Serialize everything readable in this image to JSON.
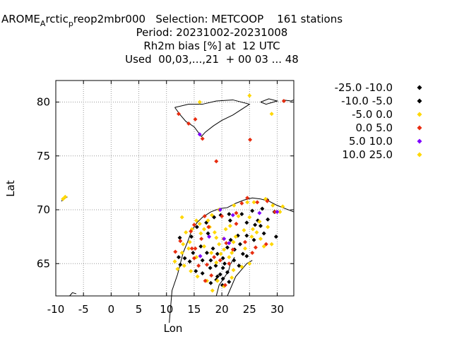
{
  "title": {
    "line1_a": "AROME",
    "line1_sub1": "A",
    "line1_b": "rctic",
    "line1_sub2": "p",
    "line1_c": "reop2mbr000   Selection: METCOOP    161 stations",
    "line2": "Period: 20231002-20231008",
    "line3": "Rh2m bias [%] at  12 UTC",
    "line4": "Used  00,03,...,21  + 00 03 ... 48"
  },
  "chart_data": {
    "type": "scatter",
    "xlabel": "Lon",
    "ylabel": "Lat",
    "xlim": [
      -10,
      33
    ],
    "ylim": [
      62,
      82
    ],
    "xticks": [
      -10,
      -5,
      0,
      5,
      10,
      15,
      20,
      25,
      30
    ],
    "yticks": [
      65,
      70,
      75,
      80
    ],
    "grid": true,
    "legend_position": "right",
    "series": [
      {
        "name": "-25.0 -10.0",
        "color": "#000000",
        "points": [
          [
            14.5,
            67.5
          ],
          [
            15.5,
            68.4
          ],
          [
            17.2,
            68.8
          ],
          [
            18.6,
            69.3
          ],
          [
            19.8,
            69.5
          ],
          [
            21.3,
            69.6
          ],
          [
            23.6,
            69.6
          ],
          [
            25.5,
            69.9
          ],
          [
            27.3,
            70.1
          ],
          [
            28.2,
            70.9
          ],
          [
            24.5,
            68.8
          ],
          [
            26.5,
            69.0
          ],
          [
            28.3,
            69.1
          ],
          [
            29.5,
            69.8
          ],
          [
            27.0,
            68.5
          ],
          [
            29.8,
            67.5
          ],
          [
            27.6,
            67.8
          ],
          [
            25.8,
            67.2
          ],
          [
            24.5,
            67.6
          ],
          [
            23.3,
            66.8
          ],
          [
            22.3,
            66.3
          ],
          [
            21.0,
            66.5
          ],
          [
            20.2,
            65.5
          ],
          [
            19.2,
            65.9
          ],
          [
            18.4,
            66.4
          ],
          [
            20.5,
            65.0
          ],
          [
            18.9,
            64.8
          ],
          [
            17.9,
            64.6
          ],
          [
            16.5,
            64.1
          ],
          [
            15.3,
            64.3
          ],
          [
            14.8,
            66.0
          ],
          [
            13.3,
            65.5
          ],
          [
            12.2,
            65.6
          ],
          [
            12.5,
            64.9
          ],
          [
            19.7,
            64.0
          ],
          [
            20.2,
            63.6
          ],
          [
            21.3,
            63.3
          ],
          [
            21.0,
            64.2
          ],
          [
            20.2,
            64.6
          ],
          [
            22.2,
            65.3
          ],
          [
            23.8,
            65.9
          ],
          [
            24.5,
            65.7
          ],
          [
            18.0,
            63.2
          ],
          [
            19.0,
            63.5
          ],
          [
            12.4,
            67.4
          ],
          [
            17.5,
            67.8
          ],
          [
            21.6,
            67.2
          ],
          [
            17.3,
            66.0
          ]
        ]
      },
      {
        "name": "-10.0 -5.0",
        "color": "#000000",
        "points": [
          [
            20.1,
            63.0
          ],
          [
            19.2,
            63.8
          ],
          [
            23.1,
            64.8
          ],
          [
            18.0,
            65.3
          ],
          [
            16.2,
            66.6
          ],
          [
            16.5,
            65.3
          ],
          [
            22.9,
            67.6
          ],
          [
            26.0,
            68.6
          ],
          [
            14.2,
            65.2
          ],
          [
            21.5,
            69.0
          ]
        ]
      },
      {
        "name": "-5.0 0.0",
        "color": "#ffd700",
        "points": [
          [
            -8.7,
            71.0
          ],
          [
            -8.3,
            71.2
          ],
          [
            16.0,
            80.0
          ],
          [
            25.0,
            80.6
          ],
          [
            29.0,
            78.9
          ],
          [
            11.5,
            65.2
          ],
          [
            12.0,
            64.5
          ],
          [
            13.2,
            64.8
          ],
          [
            12.8,
            66.0
          ],
          [
            13.0,
            66.8
          ],
          [
            14.2,
            67.0
          ],
          [
            14.6,
            68.2
          ],
          [
            16.0,
            68.7
          ],
          [
            16.8,
            68.2
          ],
          [
            17.5,
            69.0
          ],
          [
            18.2,
            69.5
          ],
          [
            19.5,
            70.0
          ],
          [
            22.2,
            70.4
          ],
          [
            24.6,
            70.7
          ],
          [
            25.8,
            70.7
          ],
          [
            27.9,
            71.0
          ],
          [
            29.2,
            70.4
          ],
          [
            30.5,
            69.8
          ],
          [
            31.0,
            70.3
          ],
          [
            25.0,
            69.3
          ],
          [
            26.8,
            68.9
          ],
          [
            28.3,
            68.4
          ],
          [
            29.0,
            66.8
          ],
          [
            27.6,
            66.6
          ],
          [
            26.3,
            67.9
          ],
          [
            24.0,
            68.1
          ],
          [
            22.5,
            67.5
          ],
          [
            21.5,
            68.5
          ],
          [
            20.7,
            68.2
          ],
          [
            20.3,
            67.3
          ],
          [
            19.5,
            66.8
          ],
          [
            18.7,
            67.9
          ],
          [
            19.0,
            65.1
          ],
          [
            21.3,
            65.6
          ],
          [
            23.6,
            64.7
          ],
          [
            22.1,
            64.4
          ],
          [
            19.8,
            65.9
          ],
          [
            18.1,
            66.0
          ],
          [
            16.8,
            66.6
          ],
          [
            15.4,
            65.6
          ],
          [
            14.4,
            64.3
          ],
          [
            15.6,
            63.8
          ],
          [
            17.3,
            63.4
          ],
          [
            18.3,
            62.5
          ],
          [
            20.4,
            62.9
          ],
          [
            21.8,
            63.7
          ],
          [
            25.0,
            65.0
          ],
          [
            24.2,
            66.4
          ],
          [
            14.0,
            66.4
          ],
          [
            13.5,
            67.9
          ],
          [
            15.4,
            69.0
          ],
          [
            17.8,
            68.4
          ],
          [
            23.0,
            69.4
          ],
          [
            27.0,
            67.3
          ],
          [
            19.2,
            63.4
          ],
          [
            16.2,
            67.8
          ],
          [
            21.8,
            66.0
          ],
          [
            25.6,
            68.2
          ]
        ]
      },
      {
        "name": "0.0 5.0",
        "color": "#e82d10",
        "points": [
          [
            12.2,
            78.9
          ],
          [
            14.0,
            78.0
          ],
          [
            15.2,
            78.4
          ],
          [
            16.5,
            76.6
          ],
          [
            19.0,
            74.5
          ],
          [
            25.1,
            76.5
          ],
          [
            31.2,
            80.1
          ],
          [
            15.0,
            65.5
          ],
          [
            15.2,
            66.4
          ],
          [
            14.4,
            68.0
          ],
          [
            16.3,
            67.3
          ],
          [
            16.9,
            69.4
          ],
          [
            20.0,
            69.4
          ],
          [
            22.6,
            69.7
          ],
          [
            23.6,
            70.6
          ],
          [
            24.6,
            71.1
          ],
          [
            26.4,
            70.7
          ],
          [
            28.2,
            70.8
          ],
          [
            29.6,
            69.8
          ],
          [
            22.6,
            68.7
          ],
          [
            24.2,
            67.0
          ],
          [
            25.5,
            66.0
          ],
          [
            26.1,
            66.5
          ],
          [
            28.0,
            66.8
          ],
          [
            21.3,
            65.0
          ],
          [
            19.7,
            65.3
          ],
          [
            17.3,
            64.9
          ],
          [
            15.8,
            64.8
          ],
          [
            14.6,
            66.4
          ],
          [
            15.0,
            68.6
          ],
          [
            17.6,
            68.4
          ],
          [
            18.1,
            63.9
          ],
          [
            17.0,
            63.4
          ],
          [
            22.0,
            66.3
          ],
          [
            12.5,
            67.1
          ],
          [
            11.6,
            66.1
          ],
          [
            20.8,
            66.9
          ],
          [
            20.6,
            63.0
          ],
          [
            18.6,
            65.6
          ]
        ]
      },
      {
        "name": "5.0 10.0",
        "color": "#7f00ff",
        "points": [
          [
            16.0,
            77.0
          ],
          [
            30.0,
            69.8
          ],
          [
            21.3,
            66.9
          ],
          [
            16.1,
            65.7
          ],
          [
            17.7,
            67.5
          ],
          [
            19.7,
            70.0
          ],
          [
            22.0,
            69.5
          ],
          [
            20.4,
            67.3
          ],
          [
            26.8,
            69.7
          ]
        ]
      },
      {
        "name": "10.0 25.0",
        "color": "#ffd700",
        "points": [
          [
            12.8,
            69.3
          ],
          [
            22.1,
            67.0
          ],
          [
            20.4,
            66.3
          ],
          [
            19.0,
            67.4
          ],
          [
            25.4,
            67.5
          ]
        ]
      }
    ]
  }
}
